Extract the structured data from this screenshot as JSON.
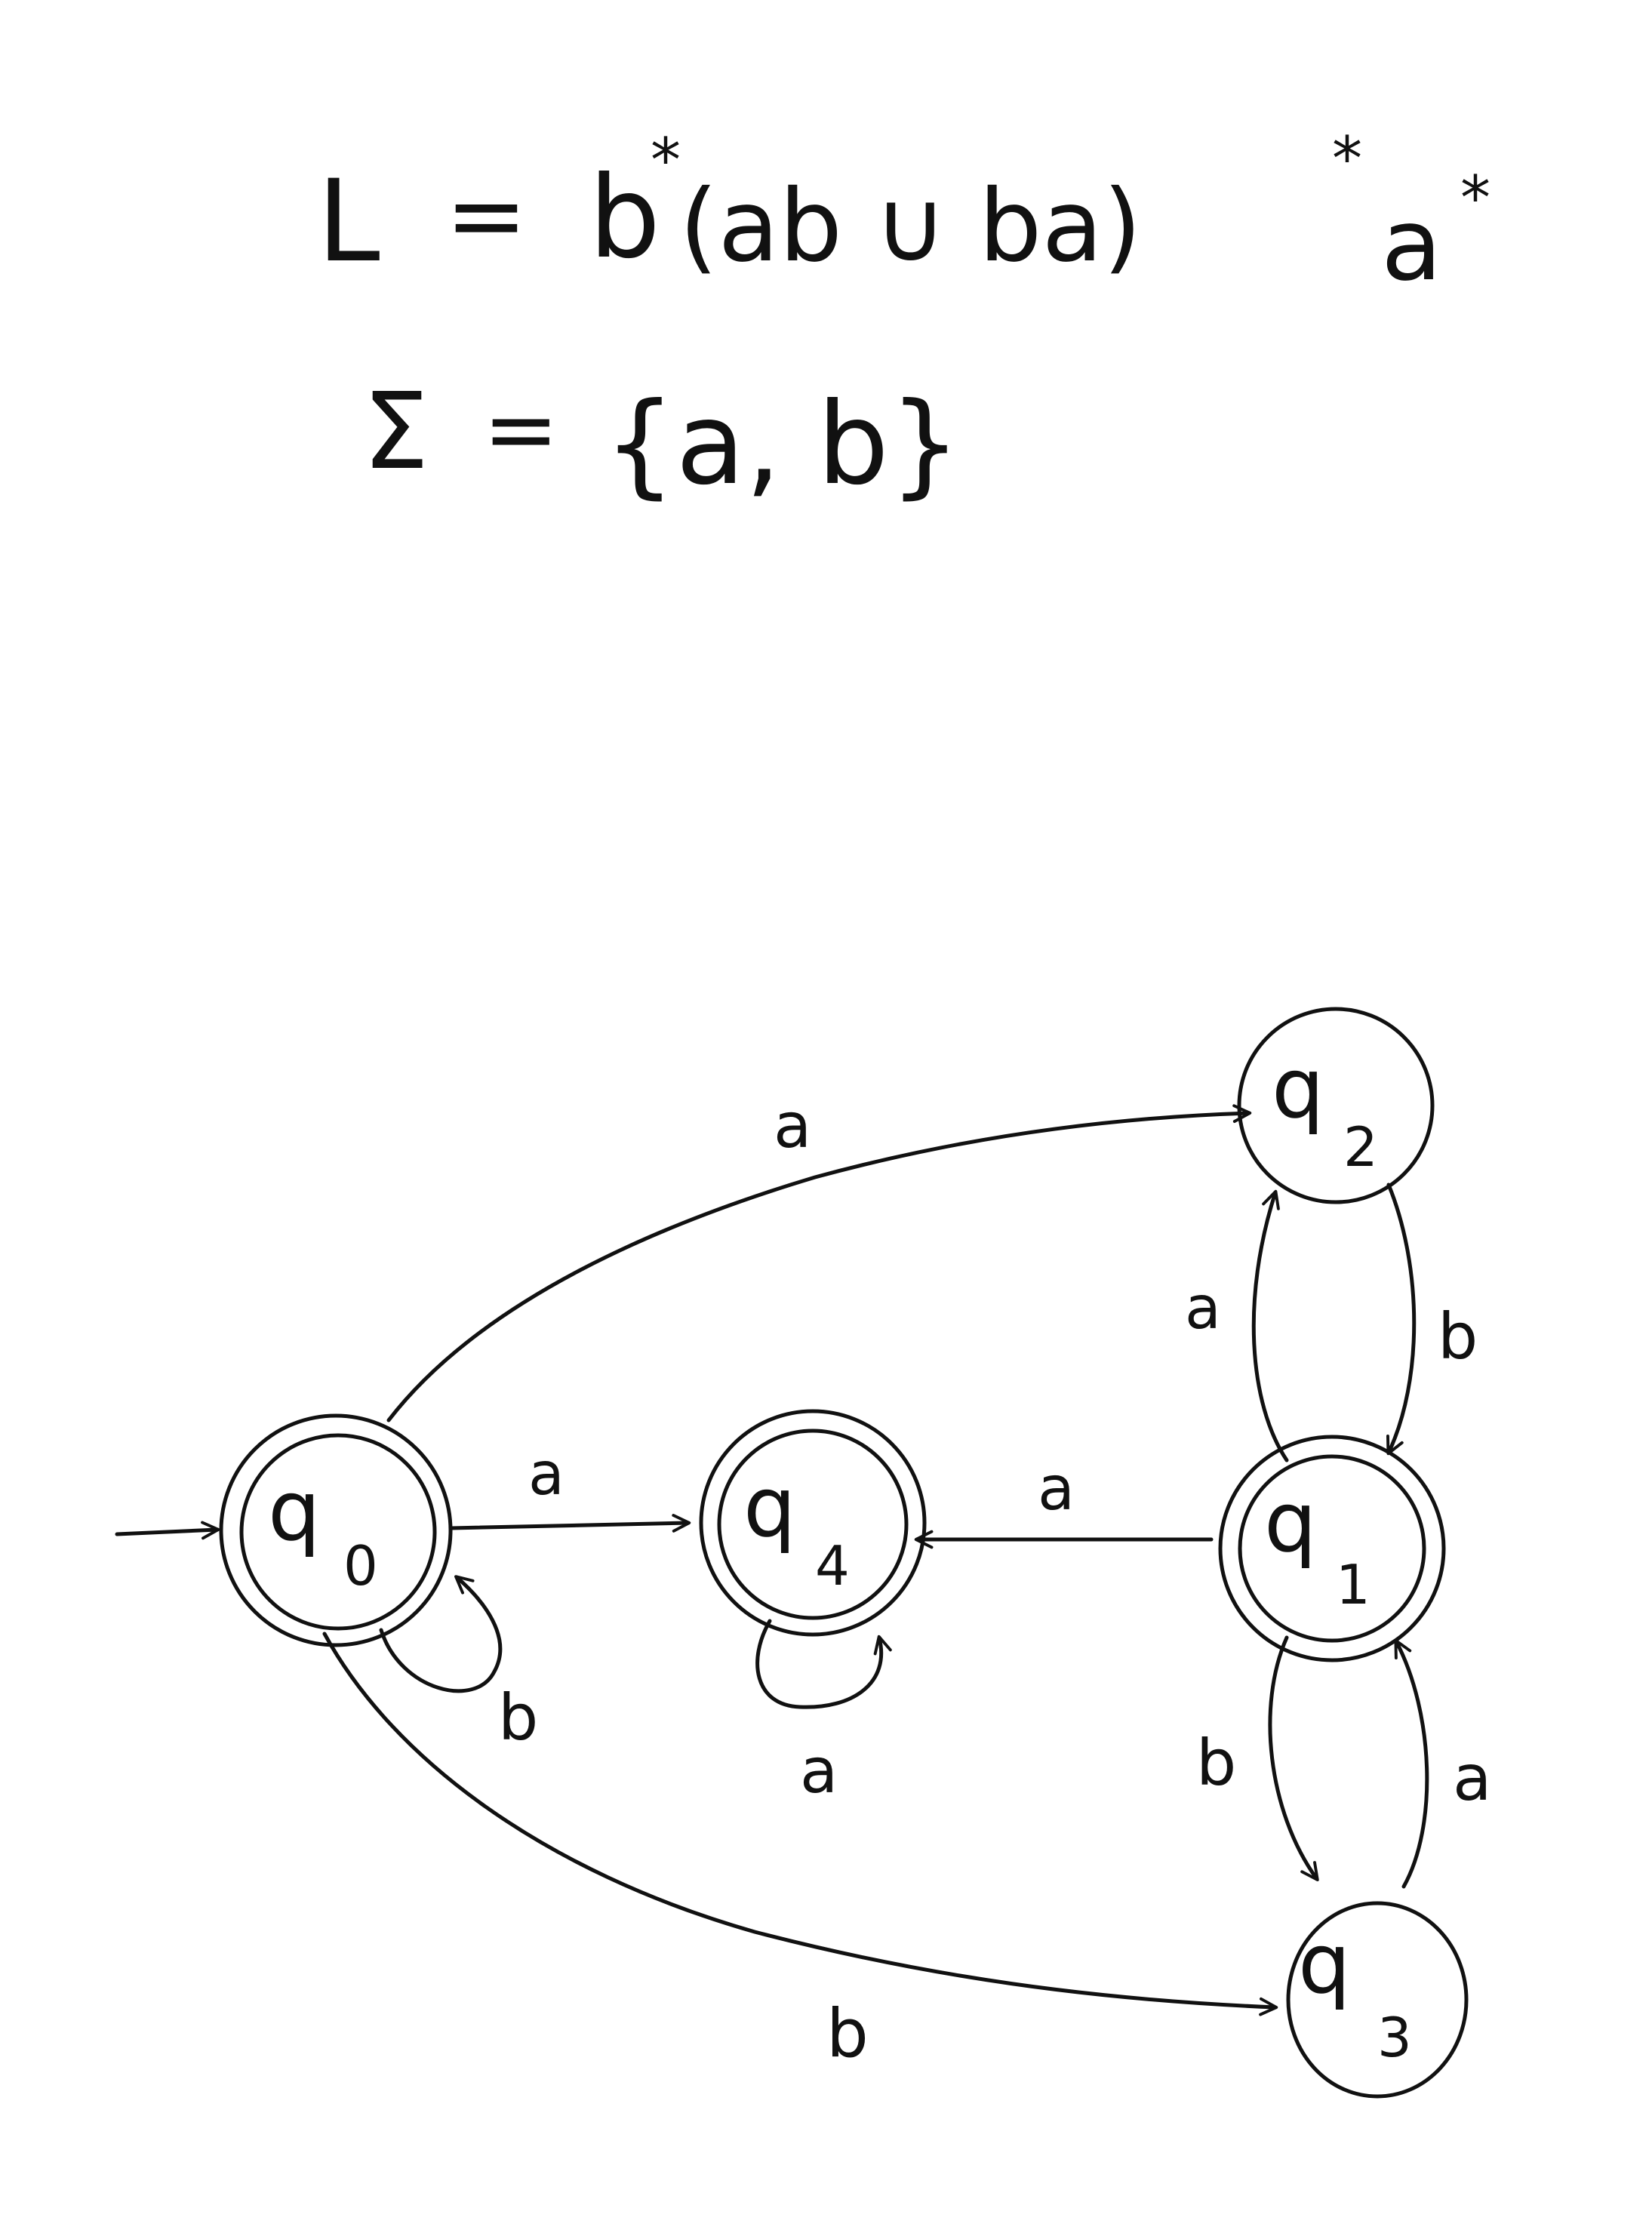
{
  "formula": {
    "language_lhs": "L",
    "equals": "=",
    "regex_parts": [
      "b",
      "*",
      "(ab ∪ ba)",
      "*",
      "a",
      "*"
    ],
    "alphabet_lhs": "Σ",
    "alphabet_rhs": "{a, b}"
  },
  "automaton": {
    "states": [
      {
        "id": "q0",
        "label": "q",
        "subscript": "0",
        "accepting": true,
        "initial": true
      },
      {
        "id": "q4",
        "label": "q",
        "subscript": "4",
        "accepting": true,
        "initial": false
      },
      {
        "id": "q1",
        "label": "q",
        "subscript": "1",
        "accepting": true,
        "initial": false
      },
      {
        "id": "q2",
        "label": "q",
        "subscript": "2",
        "accepting": false,
        "initial": false
      },
      {
        "id": "q3",
        "label": "q",
        "subscript": "3",
        "accepting": false,
        "initial": false
      }
    ],
    "transitions": [
      {
        "from": "q0",
        "to": "q2",
        "symbol": "a"
      },
      {
        "from": "q0",
        "to": "q4",
        "symbol": "a"
      },
      {
        "from": "q0",
        "to": "q0",
        "symbol": "b"
      },
      {
        "from": "q0",
        "to": "q3",
        "symbol": "b"
      },
      {
        "from": "q4",
        "to": "q4",
        "symbol": "a"
      },
      {
        "from": "q1",
        "to": "q4",
        "symbol": "a"
      },
      {
        "from": "q1",
        "to": "q2",
        "symbol": "a"
      },
      {
        "from": "q2",
        "to": "q1",
        "symbol": "b"
      },
      {
        "from": "q1",
        "to": "q3",
        "symbol": "b"
      },
      {
        "from": "q3",
        "to": "q1",
        "symbol": "a"
      }
    ]
  },
  "colors": {
    "ink": "#111111",
    "paper": "#ffffff"
  }
}
